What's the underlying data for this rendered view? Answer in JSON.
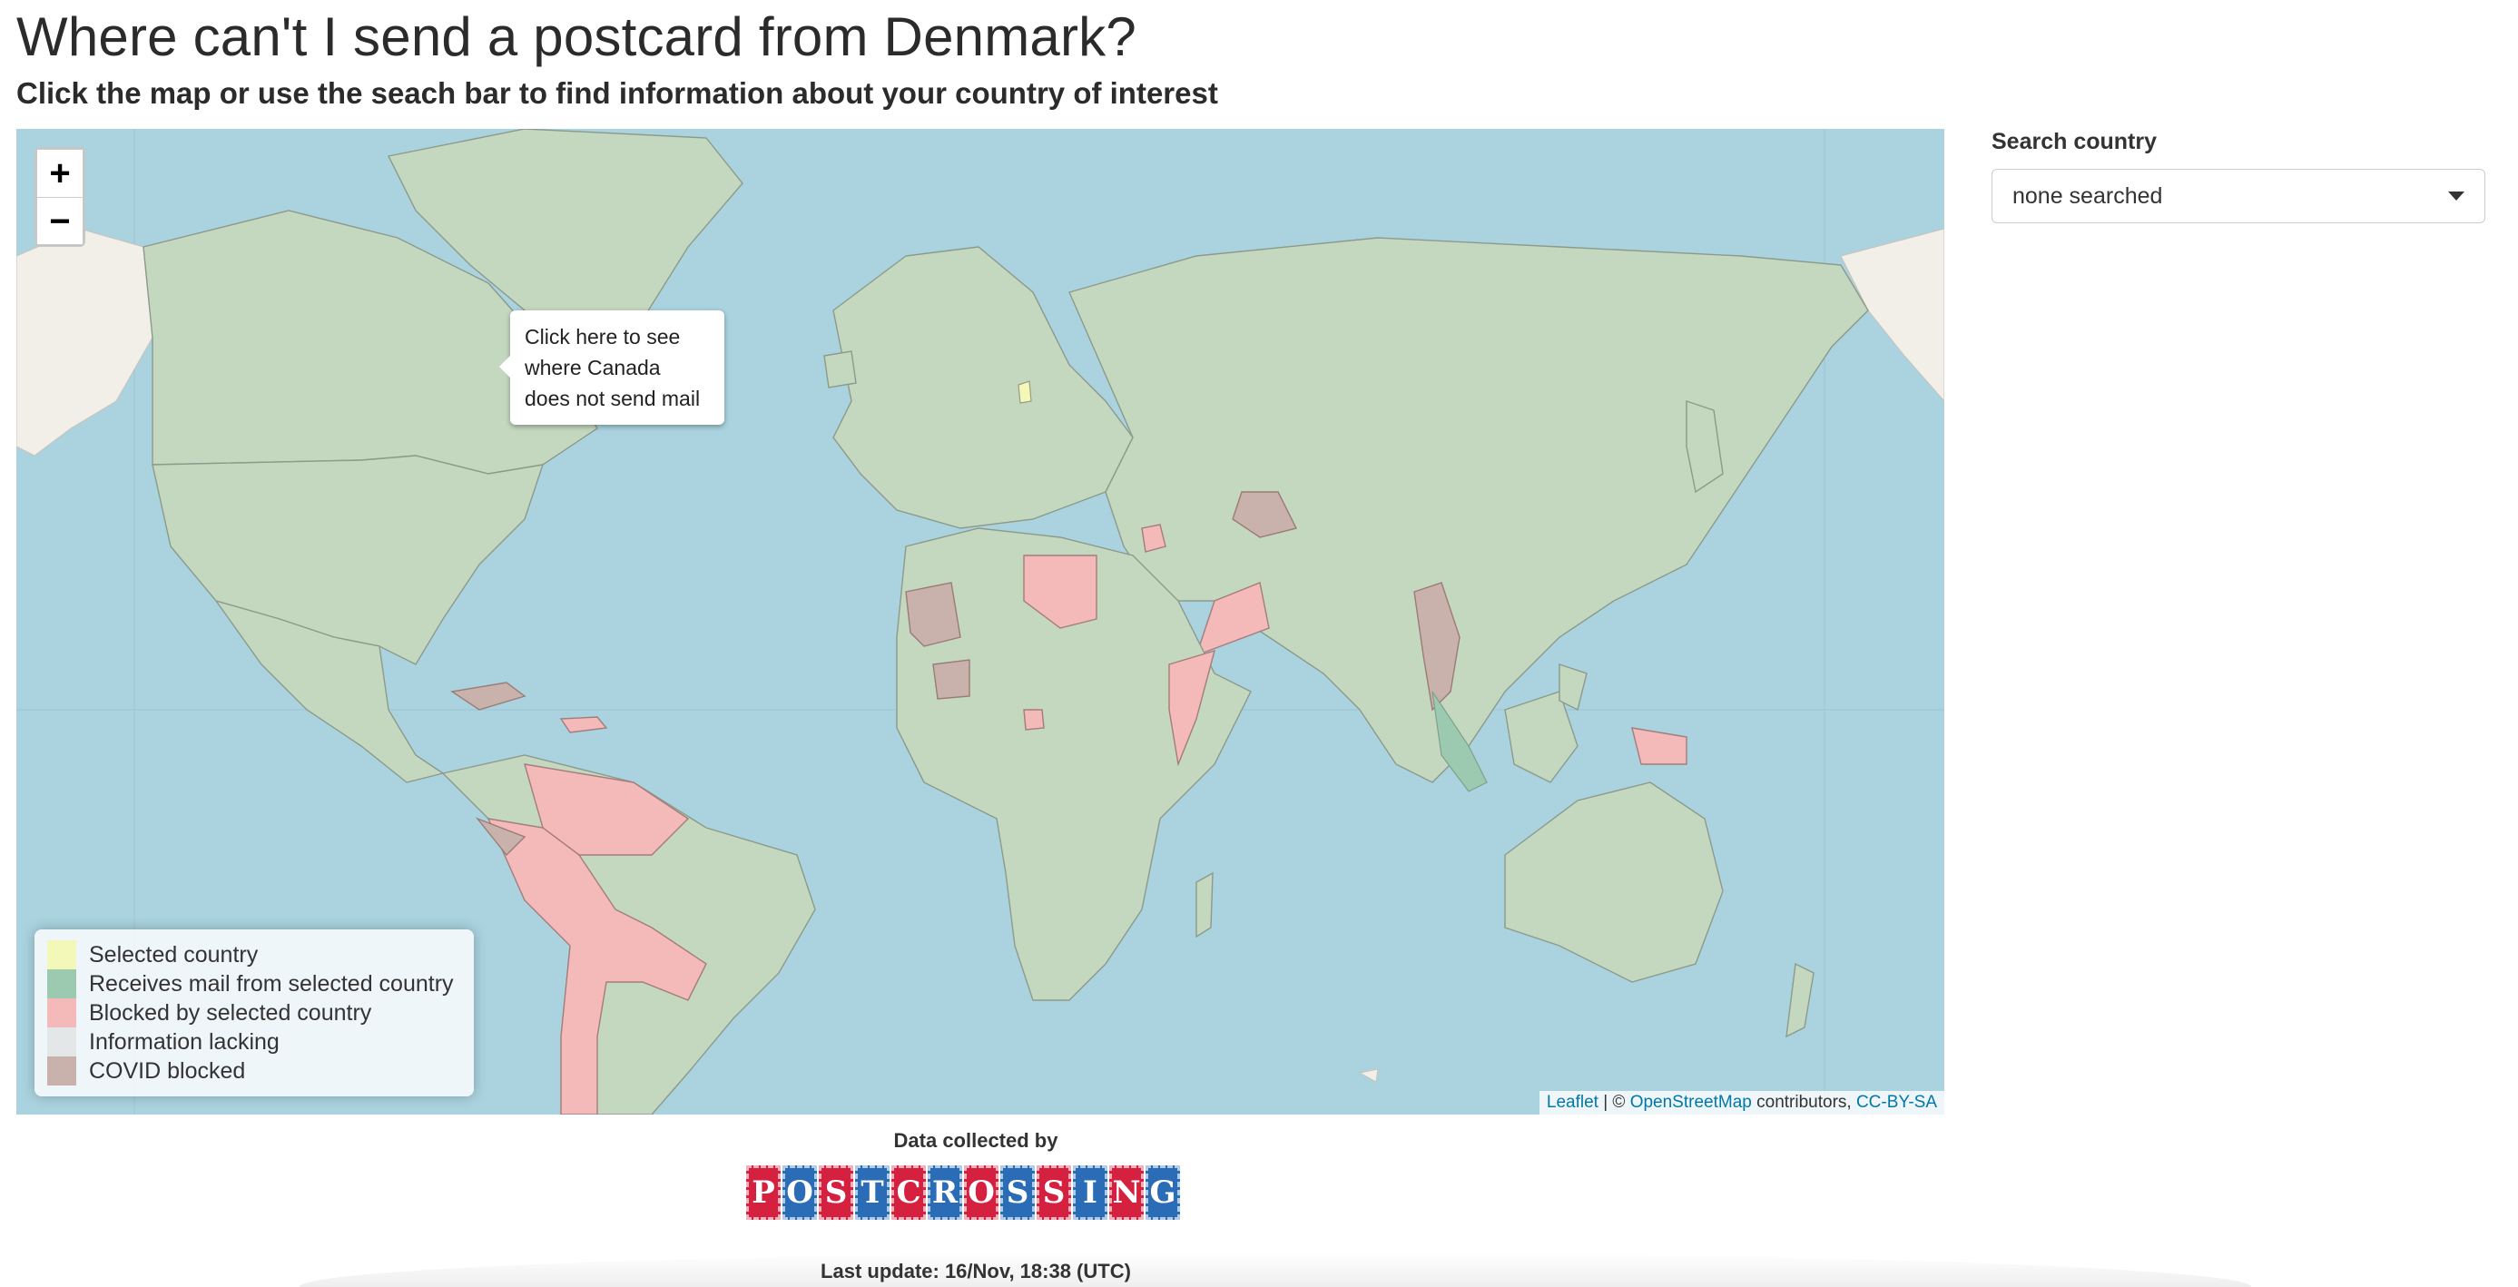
{
  "page": {
    "title": "Where can't I send a postcard from Denmark?",
    "subtitle": "Click the map or use the seach bar to find information about your country of interest"
  },
  "map": {
    "zoom_in": "+",
    "zoom_out": "−",
    "tooltip": "Click here to see where Canada does not send mail",
    "attribution": {
      "leaflet": "Leaflet",
      "separator": " | © ",
      "osm": "OpenStreetMap",
      "contributors": " contributors, ",
      "license": "CC-BY-SA"
    },
    "legend": [
      {
        "label": "Selected country",
        "color": "#f3f7b8"
      },
      {
        "label": "Receives mail from selected country",
        "color": "#9ccab0"
      },
      {
        "label": "Blocked by selected country",
        "color": "#f4b9b9"
      },
      {
        "label": "Information lacking",
        "color": "#e3e7e8"
      },
      {
        "label": "COVID blocked",
        "color": "#c9b1ac"
      }
    ]
  },
  "search": {
    "label": "Search country",
    "selected": "none searched"
  },
  "footer": {
    "data_collected_by": "Data collected by",
    "logo_text": "POSTCROSSING",
    "last_update": "Last update: 16/Nov, 18:38 (UTC)"
  },
  "colors": {
    "ocean": "#aad3df",
    "land": "#c4d8c0",
    "logo_red": "#d5203f",
    "logo_blue": "#2a6cb6",
    "link": "#0078a8"
  }
}
